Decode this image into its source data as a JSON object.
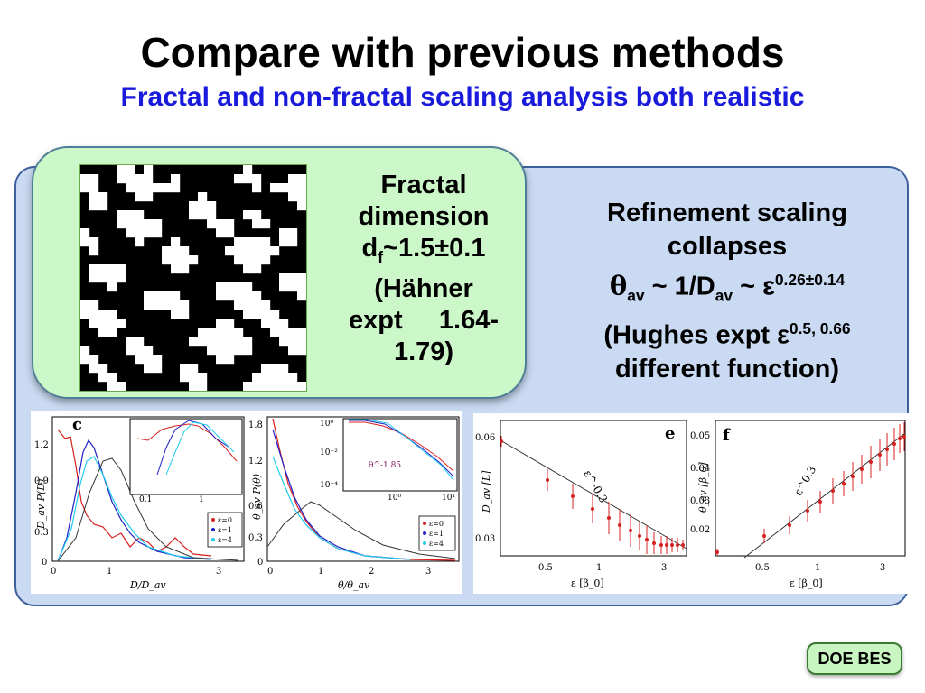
{
  "slide": {
    "title": "Compare with previous methods",
    "subtitle": "Fractal and non-fractal scaling analysis both realistic"
  },
  "fractal_box": {
    "line1": "Fractal",
    "line2": "dimension",
    "df_pre": "d",
    "df_sub": "f",
    "df_post": "~1.5±0.1",
    "line4": "(Hähner",
    "line5": "expt     1.64-",
    "line6": "1.79)"
  },
  "refine_box": {
    "line1": "Refinement scaling",
    "line2": "collapses",
    "eq_theta": "θ",
    "eq_av1": "av",
    "eq_mid": " ~ 1/D",
    "eq_av2": "av",
    "eq_tilde": " ~ ε",
    "eq_exp": "0.26±0.14",
    "hughes_pre": "(Hughes expt ε",
    "hughes_exp": "0.5, 0.66",
    "line5": "different function)"
  },
  "badge": {
    "label": "DOE BES"
  },
  "colors": {
    "title": "#000000",
    "subtitle": "#1a1adc",
    "panel": "#c9daf2",
    "green": "#ccf7c8",
    "red": "#d62020",
    "blue": "#2020c8",
    "cyan": "#22ccee"
  },
  "figures": {
    "c": {
      "label": "c",
      "ylabel": "D_av P(D)",
      "xlabel": "D/D_av",
      "yticks": [
        "1.2",
        "0.9",
        "0.6",
        "0.3",
        "0"
      ],
      "xticks": [
        "0",
        "1",
        "2",
        "3"
      ],
      "legend": [
        "ε=0",
        "ε=1",
        "ε=4"
      ],
      "inset_xticks": [
        "0.1",
        "1"
      ],
      "inset_yticks": [
        "1",
        "0.1",
        "0.01"
      ]
    },
    "d": {
      "label": "d",
      "ylabel": "θ_av P(θ)",
      "xlabel": "θ/θ_av",
      "yticks": [
        "1.8",
        "1.2",
        "0.6",
        "0.3",
        "0"
      ],
      "xticks": [
        "0",
        "1",
        "2",
        "3"
      ],
      "legend": [
        "ε=0",
        "ε=1",
        "ε=4"
      ],
      "inset_yticks": [
        "10⁰",
        "10⁻²",
        "10⁻⁴"
      ],
      "inset_xticks": [
        "10⁰",
        "10¹"
      ],
      "inset_note": "θ^-1.85"
    },
    "e": {
      "label": "e",
      "ylabel": "D_av [L]",
      "xlabel": "ε [β_0]",
      "yticks": [
        "0.06",
        "0.03"
      ],
      "xticks": [
        "0.5",
        "1",
        "3"
      ],
      "annotation": "ε^-0.3",
      "points": [
        [
          0.3,
          0.057
        ],
        [
          0.5,
          0.047
        ],
        [
          0.7,
          0.041
        ],
        [
          0.9,
          0.038
        ],
        [
          1.1,
          0.036
        ],
        [
          1.3,
          0.035
        ],
        [
          1.6,
          0.033
        ],
        [
          1.9,
          0.031
        ],
        [
          2.2,
          0.03
        ],
        [
          2.5,
          0.029
        ],
        [
          2.8,
          0.029
        ],
        [
          3.1,
          0.029
        ],
        [
          3.4,
          0.029
        ],
        [
          3.7,
          0.029
        ],
        [
          4.0,
          0.029
        ]
      ]
    },
    "f": {
      "label": "f",
      "ylabel": "θ_av [β_0]",
      "xlabel": "ε [β_0]",
      "yticks": [
        "0.05",
        "0.04",
        "0.03",
        "0.02"
      ],
      "xticks": [
        "0.5",
        "1",
        "3"
      ],
      "annotation": "ε^0.3"
    }
  }
}
